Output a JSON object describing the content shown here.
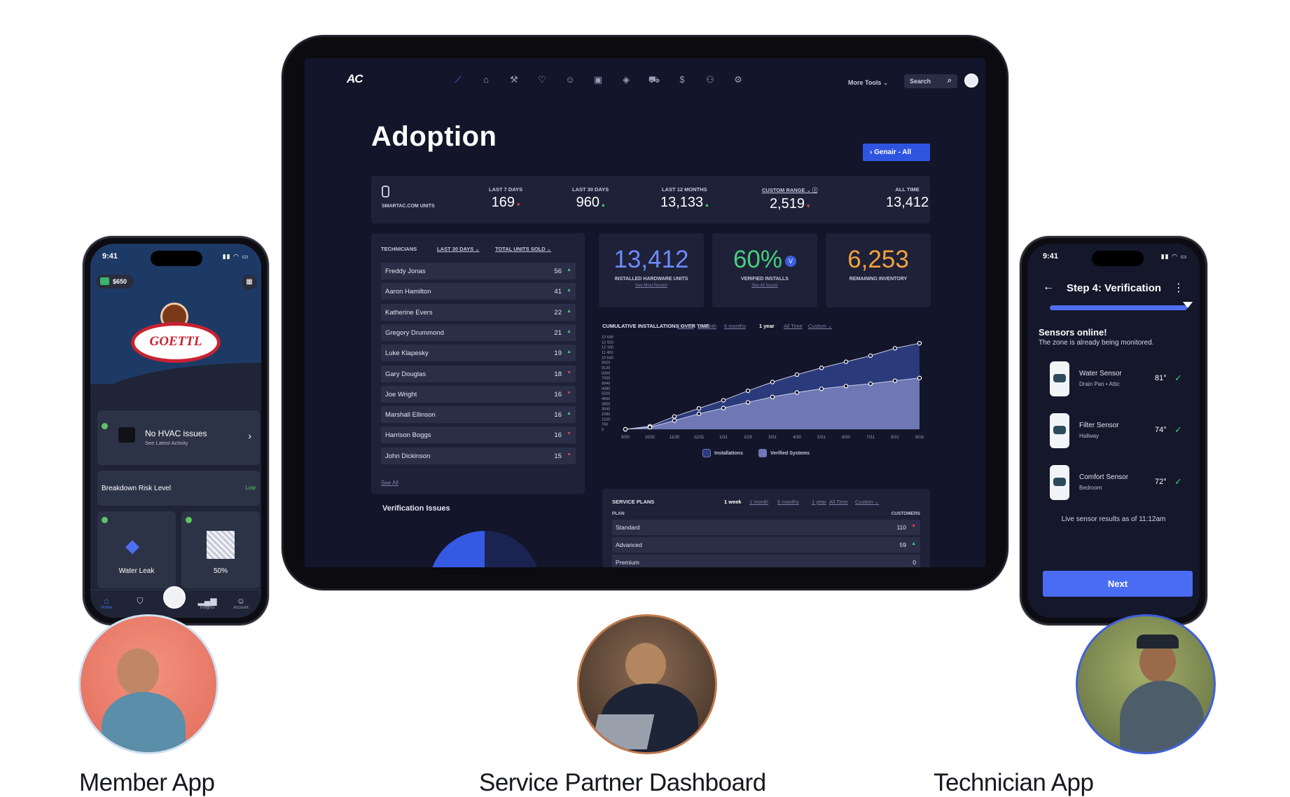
{
  "dashboard": {
    "logo": "AC",
    "more_tools": "More Tools ⌄",
    "search_label": "Search",
    "title": "Adoption",
    "filter_button": "› Genair - All",
    "units_label": "SMARTAC.COM UNITS",
    "stats": [
      {
        "label": "LAST 7 DAYS",
        "value": "169",
        "trend": "down"
      },
      {
        "label": "LAST 30 DAYS",
        "value": "960",
        "trend": "up"
      },
      {
        "label": "LAST 12 MONTHS",
        "value": "13,133",
        "trend": "up"
      },
      {
        "label": "CUSTOM RANGE ⌄ ⓘ",
        "value": "2,519",
        "trend": "down"
      },
      {
        "label": "ALL TIME",
        "value": "13,412",
        "trend": ""
      }
    ],
    "technicians": {
      "header": "TECHNICIANS",
      "filter_period": "LAST 30 DAYS",
      "filter_sort": "TOTAL UNITS SOLD",
      "rows": [
        {
          "name": "Freddy Jonas",
          "count": "56",
          "trend": "up"
        },
        {
          "name": "Aaron Hamilton",
          "count": "41",
          "trend": "up"
        },
        {
          "name": "Katherine Evers",
          "count": "22",
          "trend": "up"
        },
        {
          "name": "Gregory Drummond",
          "count": "21",
          "trend": "up"
        },
        {
          "name": "Luke Klapesky",
          "count": "19",
          "trend": "up"
        },
        {
          "name": "Gary Douglas",
          "count": "18",
          "trend": "down"
        },
        {
          "name": "Joe Wright",
          "count": "16",
          "trend": "down"
        },
        {
          "name": "Marshall Ellinson",
          "count": "16",
          "trend": "up"
        },
        {
          "name": "Harrison Boggs",
          "count": "16",
          "trend": "down"
        },
        {
          "name": "John Dickinson",
          "count": "15",
          "trend": "down"
        }
      ],
      "see_all": "See All"
    },
    "big_stats": [
      {
        "value": "13,412",
        "label": "INSTALLED HARDWARE UNITS",
        "link": "See Most Recent",
        "color": "#6d8bff"
      },
      {
        "value": "60%",
        "label": "VERIFIED INSTALLS",
        "link": "See All Issues",
        "color": "#46d07d",
        "badge": "V"
      },
      {
        "value": "6,253",
        "label": "REMAINING INVENTORY",
        "link": "",
        "color": "#f3a33d"
      }
    ],
    "chart_title": "CUMULATIVE INSTALLATIONS OVER TIME",
    "chart_ranges": [
      "1 week",
      "1 month",
      "6 months",
      "1 year",
      "All Time",
      "Custom ⌄"
    ],
    "chart_ranges_selected": "1 year",
    "legend": [
      "Installations",
      "Verified Systems"
    ],
    "verification_title": "Verification Issues",
    "service_plans": {
      "header": "SERVICE PLANS",
      "ranges": [
        "1 week",
        "1 month",
        "6 months",
        "1 year",
        "All Time",
        "Custom ⌄"
      ],
      "selected": "1 week",
      "col_plan": "PLAN",
      "col_customers": "CUSTOMERS",
      "rows": [
        {
          "name": "Standard",
          "count": "110",
          "trend": "down"
        },
        {
          "name": "Advanced",
          "count": "59",
          "trend": "up"
        },
        {
          "name": "Premium",
          "count": "0",
          "trend": ""
        }
      ]
    }
  },
  "chart_data": {
    "type": "area",
    "title": "CUMULATIVE INSTALLATIONS OVER TIME",
    "categories": [
      "9/30",
      "10/31",
      "11/30",
      "12/31",
      "1/31",
      "2/29",
      "3/31",
      "4/30",
      "5/31",
      "6/30",
      "7/31",
      "8/31",
      "9/16"
    ],
    "y_tick_labels": [
      "13 690",
      "12 920",
      "12 160",
      "11 400",
      "10 640",
      "9920",
      "9120",
      "8360",
      "7600",
      "6840",
      "6080",
      "5320",
      "4560",
      "3800",
      "3040",
      "2280",
      "1520",
      "760",
      "0"
    ],
    "ylim": [
      0,
      13690
    ],
    "series": [
      {
        "name": "Installations",
        "values": [
          0,
          450,
          1900,
          3100,
          4300,
          5700,
          7000,
          8100,
          9100,
          10000,
          10900,
          12000,
          12750
        ],
        "color": "#2a3a7a"
      },
      {
        "name": "Verified Systems",
        "values": [
          0,
          300,
          1300,
          2300,
          3150,
          4000,
          4800,
          5450,
          6000,
          6400,
          6750,
          7200,
          7600
        ],
        "color": "#6f78b5"
      }
    ],
    "legend": "bottom"
  },
  "member_app": {
    "time": "9:41",
    "balance": "$650",
    "brand": "GOETTL",
    "hvac_title": "No HVAC issues",
    "hvac_sub": "See Latest Activity",
    "risk_label": "Breakdown Risk Level",
    "risk_value": "Low",
    "tile1": "Water Leak",
    "tile2": "50%",
    "tabs": [
      "Home",
      "",
      "",
      "Insights",
      "Account"
    ]
  },
  "tech_app": {
    "time": "9:41",
    "title": "Step 4: Verification",
    "heading": "Sensors online!",
    "sub": "The zone is already being monitored.",
    "sensors": [
      {
        "name": "Water Sensor",
        "loc": "Drain Pan • Attic",
        "temp": "81°"
      },
      {
        "name": "Filter Sensor",
        "loc": "Hallway",
        "temp": "74°"
      },
      {
        "name": "Comfort Sensor",
        "loc": "Bedroom",
        "temp": "72°"
      }
    ],
    "live": "Live sensor results as of 11:12am",
    "next": "Next"
  },
  "captions": [
    "Member App",
    "Service Partner Dashboard",
    "Technician App"
  ],
  "colors": {
    "accent": "#4a6cf2",
    "bg_dark": "#13152a",
    "card": "#1e2137",
    "success": "#3ecf7a",
    "danger": "#e04545"
  }
}
